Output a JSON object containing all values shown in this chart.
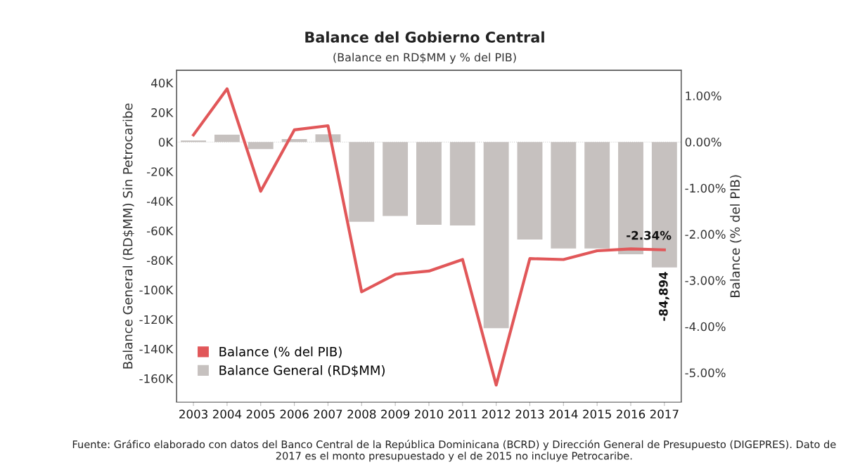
{
  "chart_data": {
    "type": "bar",
    "title": "Balance del Gobierno Central",
    "subtitle": "(Balance en RD$MM y % del PIB)",
    "ylabel": "Balance General (RD$MM) Sin Petrocaribe",
    "y2label": "Balance (% del PIB)",
    "categories": [
      "2003",
      "2004",
      "2005",
      "2006",
      "2007",
      "2008",
      "2009",
      "2010",
      "2011",
      "2012",
      "2013",
      "2014",
      "2015",
      "2016",
      "2017"
    ],
    "series": [
      {
        "name": "Balance General (RD$MM)",
        "color": "#c6c1bf",
        "values": [
          1000,
          5000,
          -4800,
          2000,
          5200,
          -54000,
          -50000,
          -56000,
          -56500,
          -126000,
          -66000,
          -72000,
          -72000,
          -76000,
          -84894
        ],
        "value_labels": [
          null,
          null,
          null,
          null,
          null,
          null,
          null,
          null,
          null,
          null,
          null,
          null,
          null,
          null,
          "-84,894"
        ]
      },
      {
        "name": "Balance (% del PIB)",
        "type": "line",
        "axis": "y2",
        "color": "#e15759",
        "values": [
          0.15,
          1.15,
          -1.07,
          0.26,
          0.35,
          -3.25,
          -2.87,
          -2.8,
          -2.55,
          -5.27,
          -2.53,
          -2.55,
          -2.36,
          -2.32,
          -2.34
        ],
        "value_labels": [
          null,
          null,
          null,
          null,
          null,
          null,
          null,
          null,
          null,
          null,
          null,
          null,
          null,
          null,
          "-2.34%"
        ]
      }
    ],
    "ylim": [
      -176000,
      48500
    ],
    "yticks": [
      {
        "value": 40000,
        "label": "40K"
      },
      {
        "value": 20000,
        "label": "20K"
      },
      {
        "value": 0,
        "label": "0K"
      },
      {
        "value": -20000,
        "label": "-20K"
      },
      {
        "value": -40000,
        "label": "-40K"
      },
      {
        "value": -60000,
        "label": "-60K"
      },
      {
        "value": -80000,
        "label": "-80K"
      },
      {
        "value": -100000,
        "label": "-100K"
      },
      {
        "value": -120000,
        "label": "-120K"
      },
      {
        "value": -140000,
        "label": "-140K"
      },
      {
        "value": -160000,
        "label": "-160K"
      }
    ],
    "y2lim": [
      -5.64,
      1.55
    ],
    "y2ticks": [
      {
        "value": 1,
        "label": "1.00%"
      },
      {
        "value": 0,
        "label": "0.00%"
      },
      {
        "value": -1,
        "label": "-1.00%"
      },
      {
        "value": -2,
        "label": "-2.00%"
      },
      {
        "value": -3,
        "label": "-3.00%"
      },
      {
        "value": -4,
        "label": "-4.00%"
      },
      {
        "value": -5,
        "label": "-5.00%"
      }
    ],
    "ref_lines": [
      {
        "axis": "y",
        "value": 0,
        "color": "#cccccc",
        "line_style": "dotted"
      }
    ],
    "legend": "bottom left",
    "annotations": [
      "Fuente: Gráfico elaborado con datos del Banco Central de la República Dominicana (BCRD) y Dirección General de Presupuesto (DIGEPRES). Dato de 2017 es el monto presupuestado y el de 2015 no incluye Petrocaribe."
    ]
  }
}
